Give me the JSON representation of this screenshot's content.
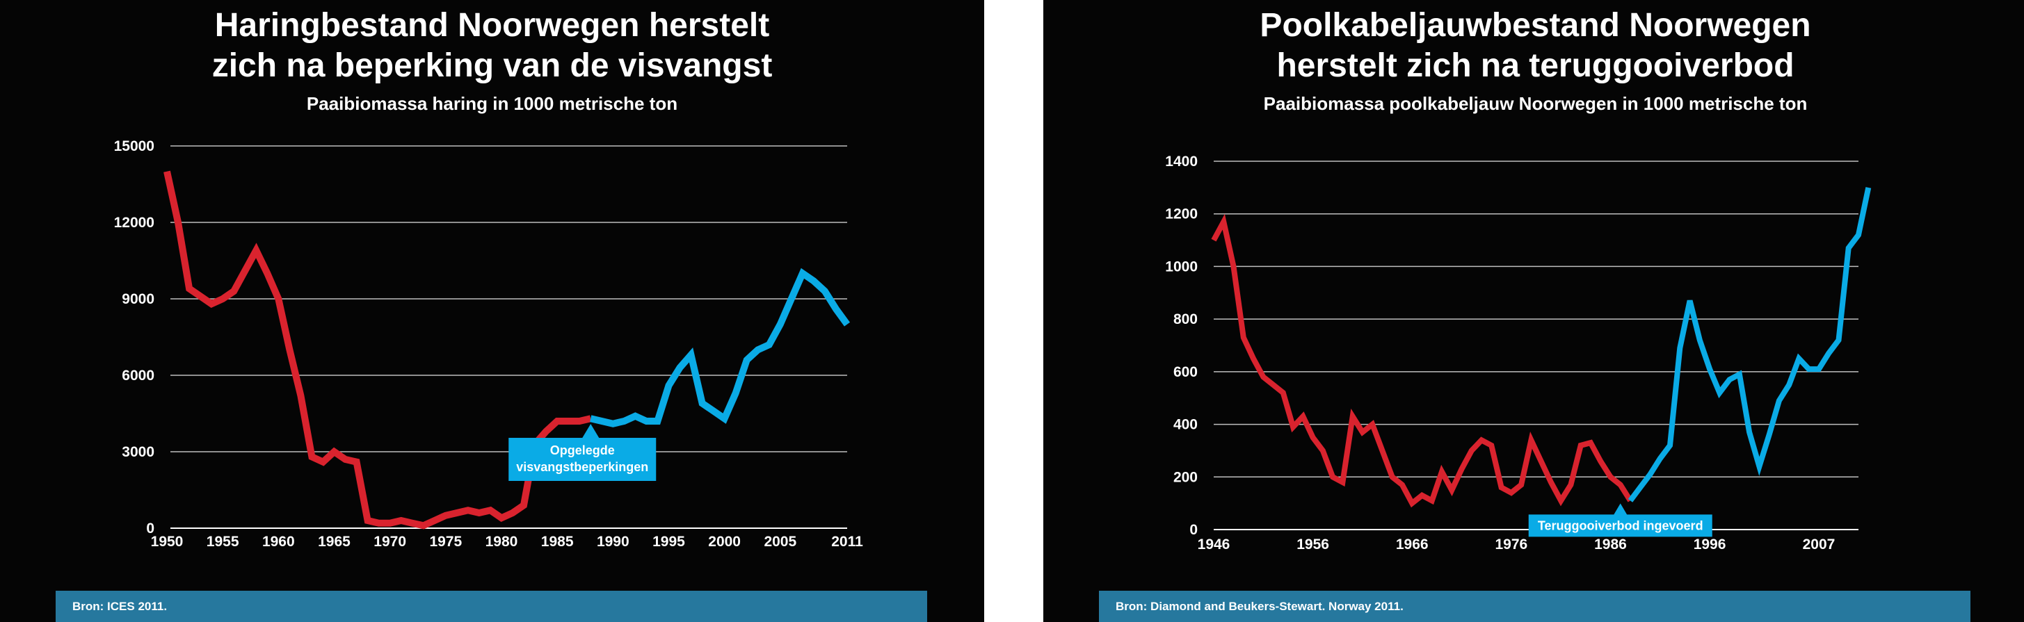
{
  "colors": {
    "background": "#050505",
    "text": "#ffffff",
    "gridline": "#bfbfbf",
    "before": "#d9232e",
    "after": "#0aabe6",
    "source_bar": "#26789e"
  },
  "chart_data": [
    {
      "type": "line",
      "title_lines": [
        "Haringbestand Noorwegen herstelt",
        "zich na beperking van de visvangst"
      ],
      "subtitle": "Paaibiomassa haring in 1000 metrische ton",
      "source": "Bron: ICES 2011.",
      "xlim": [
        1950,
        2011
      ],
      "ylim": [
        0,
        15000
      ],
      "x_ticks": [
        "1950",
        "1955",
        "1960",
        "1965",
        "1970",
        "1975",
        "1980",
        "1985",
        "1990",
        "1995",
        "2000",
        "2005",
        "2011"
      ],
      "y_ticks": [
        "0",
        "3000",
        "6000",
        "9000",
        "12000",
        "15000"
      ],
      "grid": true,
      "annotation": {
        "lines": [
          "Opgelegde",
          "visvangstbeperkingen"
        ],
        "x": 1988,
        "y": 4200,
        "pointer": "up"
      },
      "series": [
        {
          "color_key": "before",
          "points": [
            [
              1950,
              14000
            ],
            [
              1951,
              12000
            ],
            [
              1952,
              9400
            ],
            [
              1953,
              9100
            ],
            [
              1954,
              8800
            ],
            [
              1955,
              9000
            ],
            [
              1956,
              9300
            ],
            [
              1957,
              10100
            ],
            [
              1958,
              10900
            ],
            [
              1959,
              10000
            ],
            [
              1960,
              9000
            ],
            [
              1961,
              7000
            ],
            [
              1962,
              5200
            ],
            [
              1963,
              2800
            ],
            [
              1964,
              2600
            ],
            [
              1965,
              3000
            ],
            [
              1966,
              2700
            ],
            [
              1967,
              2600
            ],
            [
              1968,
              300
            ],
            [
              1969,
              200
            ],
            [
              1970,
              200
            ],
            [
              1971,
              300
            ],
            [
              1972,
              200
            ],
            [
              1973,
              100
            ],
            [
              1974,
              300
            ],
            [
              1975,
              500
            ],
            [
              1976,
              600
            ],
            [
              1977,
              700
            ],
            [
              1978,
              600
            ],
            [
              1979,
              700
            ],
            [
              1980,
              400
            ],
            [
              1981,
              600
            ],
            [
              1982,
              900
            ],
            [
              1983,
              3300
            ],
            [
              1984,
              3800
            ],
            [
              1985,
              4200
            ],
            [
              1986,
              4200
            ],
            [
              1987,
              4200
            ],
            [
              1988,
              4300
            ]
          ]
        },
        {
          "color_key": "after",
          "points": [
            [
              1988,
              4300
            ],
            [
              1989,
              4200
            ],
            [
              1990,
              4100
            ],
            [
              1991,
              4200
            ],
            [
              1992,
              4400
            ],
            [
              1993,
              4200
            ],
            [
              1994,
              4200
            ],
            [
              1995,
              5600
            ],
            [
              1996,
              6300
            ],
            [
              1997,
              6800
            ],
            [
              1998,
              4900
            ],
            [
              1999,
              4600
            ],
            [
              2000,
              4300
            ],
            [
              2001,
              5300
            ],
            [
              2002,
              6600
            ],
            [
              2003,
              7000
            ],
            [
              2004,
              7200
            ],
            [
              2005,
              8000
            ],
            [
              2006,
              9000
            ],
            [
              2007,
              10000
            ],
            [
              2008,
              9700
            ],
            [
              2009,
              9300
            ],
            [
              2010,
              8600
            ],
            [
              2011,
              8000
            ]
          ]
        }
      ]
    },
    {
      "type": "line",
      "title_lines": [
        "Poolkabeljauwbestand Noorwegen",
        "herstelt zich na teruggooiverbod"
      ],
      "subtitle": "Paaibiomassa poolkabeljauw Noorwegen in 1000 metrische ton",
      "source": "Bron: Diamond and Beukers-Stewart. Norway 2011.",
      "xlim": [
        1946,
        2011
      ],
      "ylim": [
        0,
        1400
      ],
      "x_ticks": [
        "1946",
        "1956",
        "1966",
        "1976",
        "1986",
        "1996",
        "2007"
      ],
      "y_ticks": [
        "0",
        "200",
        "400",
        "600",
        "800",
        "1000",
        "1200",
        "1400"
      ],
      "grid": true,
      "annotation": {
        "lines": [
          "Teruggooiverbod ingevoerd"
        ],
        "x": 1987,
        "y": 110,
        "pointer": "down"
      },
      "series": [
        {
          "color_key": "before",
          "points": [
            [
              1946,
              1100
            ],
            [
              1947,
              1170
            ],
            [
              1948,
              1000
            ],
            [
              1949,
              730
            ],
            [
              1950,
              650
            ],
            [
              1951,
              580
            ],
            [
              1952,
              550
            ],
            [
              1953,
              520
            ],
            [
              1954,
              390
            ],
            [
              1955,
              430
            ],
            [
              1956,
              350
            ],
            [
              1957,
              300
            ],
            [
              1958,
              200
            ],
            [
              1959,
              180
            ],
            [
              1960,
              430
            ],
            [
              1961,
              370
            ],
            [
              1962,
              400
            ],
            [
              1963,
              300
            ],
            [
              1964,
              200
            ],
            [
              1965,
              170
            ],
            [
              1966,
              100
            ],
            [
              1967,
              130
            ],
            [
              1968,
              110
            ],
            [
              1969,
              220
            ],
            [
              1970,
              150
            ],
            [
              1971,
              230
            ],
            [
              1972,
              300
            ],
            [
              1973,
              340
            ],
            [
              1974,
              320
            ],
            [
              1975,
              160
            ],
            [
              1976,
              140
            ],
            [
              1977,
              170
            ],
            [
              1978,
              340
            ],
            [
              1979,
              260
            ],
            [
              1980,
              180
            ],
            [
              1981,
              110
            ],
            [
              1982,
              170
            ],
            [
              1983,
              320
            ],
            [
              1984,
              330
            ],
            [
              1985,
              260
            ],
            [
              1986,
              200
            ],
            [
              1987,
              170
            ],
            [
              1988,
              110
            ]
          ]
        },
        {
          "color_key": "after",
          "points": [
            [
              1988,
              110
            ],
            [
              1989,
              160
            ],
            [
              1990,
              210
            ],
            [
              1991,
              270
            ],
            [
              1992,
              320
            ],
            [
              1993,
              690
            ],
            [
              1994,
              870
            ],
            [
              1995,
              720
            ],
            [
              1996,
              610
            ],
            [
              1997,
              520
            ],
            [
              1998,
              570
            ],
            [
              1999,
              590
            ],
            [
              2000,
              370
            ],
            [
              2001,
              240
            ],
            [
              2002,
              360
            ],
            [
              2003,
              490
            ],
            [
              2004,
              550
            ],
            [
              2005,
              650
            ],
            [
              2006,
              610
            ],
            [
              2007,
              610
            ],
            [
              2008,
              670
            ],
            [
              2009,
              720
            ],
            [
              2010,
              1070
            ],
            [
              2011,
              1120
            ],
            [
              2012,
              1300
            ]
          ]
        }
      ]
    }
  ]
}
